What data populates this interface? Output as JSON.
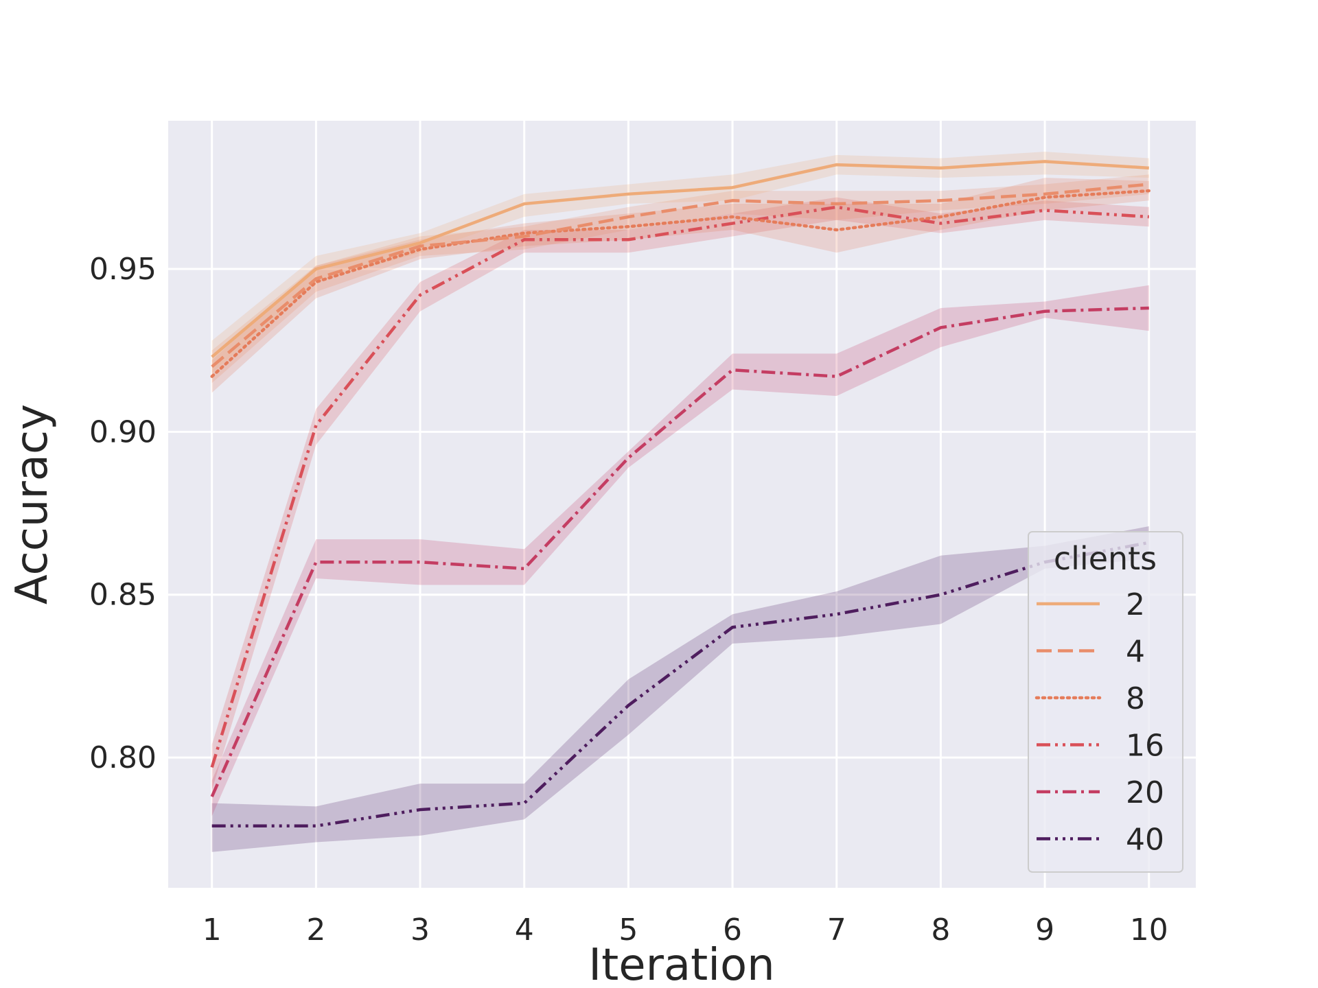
{
  "chart_data": {
    "type": "line",
    "title": "",
    "xlabel": "Iteration",
    "ylabel": "Accuracy",
    "x": [
      1,
      2,
      3,
      4,
      5,
      6,
      7,
      8,
      9,
      10
    ],
    "xticks": [
      "1",
      "2",
      "3",
      "4",
      "5",
      "6",
      "7",
      "8",
      "9",
      "10"
    ],
    "yticks": [
      "0.80",
      "0.85",
      "0.90",
      "0.95"
    ],
    "ytick_values": [
      0.8,
      0.85,
      0.9,
      0.95
    ],
    "xlim": [
      0.58,
      10.45
    ],
    "ylim": [
      0.76,
      0.9955
    ],
    "grid": true,
    "legend": {
      "title": "clients",
      "position": "lower-right"
    },
    "series": [
      {
        "name": "2",
        "color": "#eeab79",
        "dash": "solid",
        "values": [
          0.923,
          0.95,
          0.958,
          0.97,
          0.973,
          0.975,
          0.982,
          0.981,
          0.983,
          0.981
        ],
        "lower": [
          0.918,
          0.946,
          0.955,
          0.966,
          0.97,
          0.971,
          0.979,
          0.978,
          0.979,
          0.978
        ],
        "upper": [
          0.928,
          0.954,
          0.961,
          0.973,
          0.976,
          0.979,
          0.985,
          0.984,
          0.986,
          0.984
        ]
      },
      {
        "name": "4",
        "color": "#e98d6b",
        "dash": "dashed",
        "values": [
          0.92,
          0.947,
          0.957,
          0.96,
          0.966,
          0.971,
          0.97,
          0.971,
          0.973,
          0.976
        ],
        "lower": [
          0.915,
          0.943,
          0.954,
          0.956,
          0.962,
          0.967,
          0.965,
          0.968,
          0.97,
          0.973
        ],
        "upper": [
          0.925,
          0.951,
          0.96,
          0.963,
          0.969,
          0.974,
          0.974,
          0.974,
          0.976,
          0.979
        ]
      },
      {
        "name": "8",
        "color": "#e57c5a",
        "dash": "dotted",
        "values": [
          0.917,
          0.946,
          0.956,
          0.961,
          0.963,
          0.966,
          0.962,
          0.966,
          0.972,
          0.974
        ],
        "lower": [
          0.912,
          0.941,
          0.953,
          0.957,
          0.959,
          0.962,
          0.955,
          0.962,
          0.968,
          0.971
        ],
        "upper": [
          0.922,
          0.951,
          0.959,
          0.964,
          0.967,
          0.97,
          0.97,
          0.97,
          0.978,
          0.977
        ]
      },
      {
        "name": "16",
        "color": "#d95058",
        "dash": "dashdotdot",
        "values": [
          0.797,
          0.902,
          0.942,
          0.959,
          0.959,
          0.964,
          0.969,
          0.964,
          0.968,
          0.966
        ],
        "lower": [
          0.79,
          0.896,
          0.937,
          0.955,
          0.955,
          0.96,
          0.965,
          0.961,
          0.965,
          0.963
        ],
        "upper": [
          0.804,
          0.907,
          0.946,
          0.962,
          0.962,
          0.967,
          0.972,
          0.967,
          0.971,
          0.969
        ]
      },
      {
        "name": "20",
        "color": "#c43d62",
        "dash": "dashdot",
        "values": [
          0.788,
          0.86,
          0.86,
          0.858,
          0.892,
          0.919,
          0.917,
          0.932,
          0.937,
          0.938
        ],
        "lower": [
          0.782,
          0.855,
          0.853,
          0.853,
          0.889,
          0.913,
          0.911,
          0.926,
          0.935,
          0.931
        ],
        "upper": [
          0.793,
          0.867,
          0.867,
          0.864,
          0.894,
          0.924,
          0.924,
          0.938,
          0.94,
          0.945
        ]
      },
      {
        "name": "40",
        "color": "#4e1d5e",
        "dash": "dashdotdotdot",
        "values": [
          0.779,
          0.779,
          0.784,
          0.786,
          0.816,
          0.84,
          0.844,
          0.85,
          0.86,
          0.866
        ],
        "lower": [
          0.771,
          0.774,
          0.776,
          0.781,
          0.807,
          0.835,
          0.837,
          0.841,
          0.858,
          0.861
        ],
        "upper": [
          0.786,
          0.785,
          0.792,
          0.792,
          0.824,
          0.844,
          0.851,
          0.862,
          0.865,
          0.871
        ]
      }
    ]
  }
}
